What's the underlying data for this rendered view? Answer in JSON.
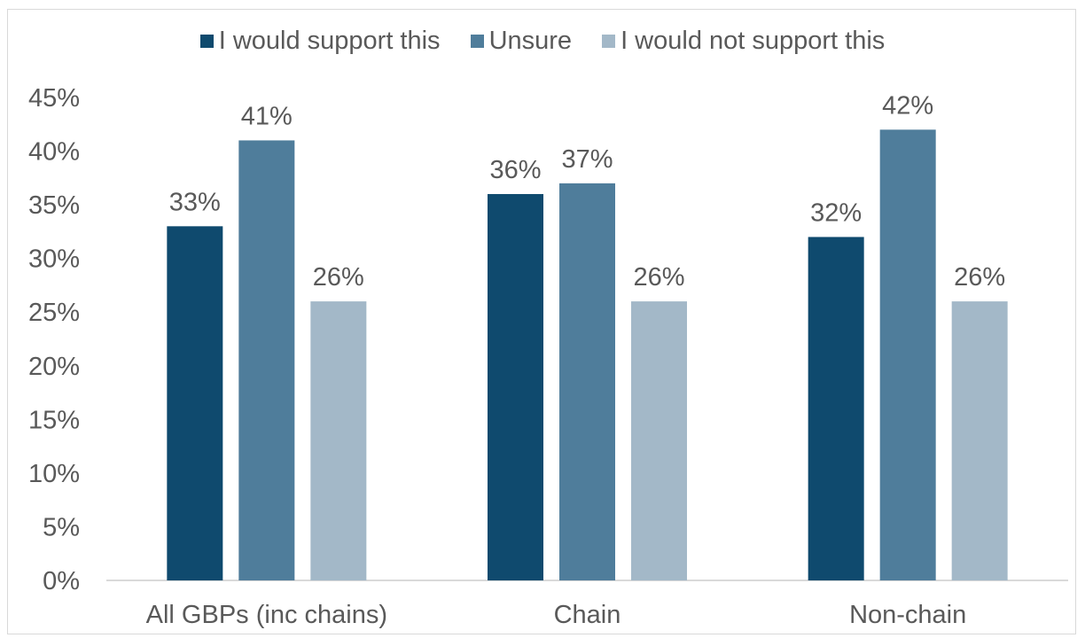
{
  "chart_data": {
    "type": "bar",
    "title": "",
    "xlabel": "",
    "ylabel": "",
    "categories": [
      "All GBPs (inc chains)",
      "Chain",
      "Non-chain"
    ],
    "series": [
      {
        "name": "I would support this",
        "color": "#0f4a6e",
        "values": [
          33,
          36,
          32
        ]
      },
      {
        "name": "Unsure",
        "color": "#4f7d9b",
        "values": [
          41,
          37,
          42
        ]
      },
      {
        "name": "I would not support this",
        "color": "#a3b8c8",
        "values": [
          26,
          26,
          26
        ]
      }
    ],
    "ylim": [
      0,
      45
    ],
    "yticks": [
      0,
      5,
      10,
      15,
      20,
      25,
      30,
      35,
      40,
      45
    ],
    "value_suffix": "%",
    "legend_position": "top",
    "grid": false,
    "colors": {
      "text": "#595959",
      "axis": "#d9d9d9"
    }
  }
}
